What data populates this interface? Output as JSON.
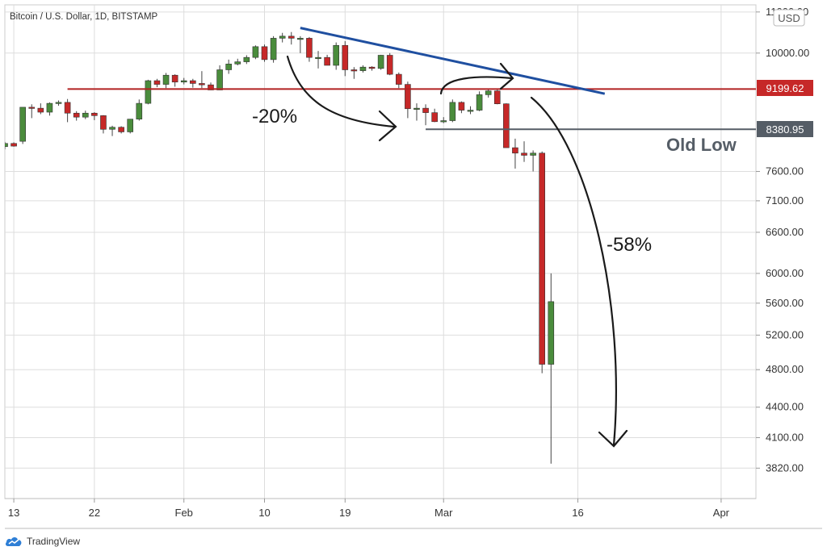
{
  "header": {
    "title": "Bitcoin / U.S. Dollar, 1D, BITSTAMP"
  },
  "currency_badge": "USD",
  "annotations": {
    "drop1": "-20%",
    "drop2": "-58%",
    "old_low": "Old Low"
  },
  "price_labels": {
    "resistance": "9199.62",
    "old_low": "8380.95"
  },
  "footer": {
    "brand": "TradingView",
    "logo_icon": "tradingview-cloud-icon"
  },
  "colors": {
    "up": "#4a8c3c",
    "down": "#c62828",
    "resistance": "#b22222",
    "support": "#555d66",
    "trendline": "#1f4fa0",
    "grid": "#dddddd"
  },
  "chart_data": {
    "type": "candlestick",
    "title": "Bitcoin / U.S. Dollar, 1D, BITSTAMP",
    "y_unit": "USD",
    "y_scale": "log",
    "ylim": [
      3600,
      11100
    ],
    "xlim": [
      "2020-01-12",
      "2020-04-02"
    ],
    "y_ticks": [
      3820,
      4100,
      4400,
      4800,
      5200,
      5600,
      6000,
      6600,
      7100,
      7600,
      10000,
      11000
    ],
    "y_tick_labels": [
      "3820.00",
      "4100.00",
      "4400.00",
      "4800.00",
      "5200.00",
      "5600.00",
      "6000.00",
      "6600.00",
      "7100.00",
      "7600.00",
      "10000.00",
      "11000.00"
    ],
    "x_ticks": [
      {
        "date": "2020-01-13",
        "label": "13"
      },
      {
        "date": "2020-01-22",
        "label": "22"
      },
      {
        "date": "2020-02-01",
        "label": "Feb"
      },
      {
        "date": "2020-02-10",
        "label": "10"
      },
      {
        "date": "2020-02-19",
        "label": "19"
      },
      {
        "date": "2020-03-01",
        "label": "Mar"
      },
      {
        "date": "2020-03-16",
        "label": "16"
      },
      {
        "date": "2020-04-01",
        "label": "Apr"
      }
    ],
    "candles": [
      [
        "2020-01-12",
        8050,
        8140,
        8000,
        8110
      ],
      [
        "2020-01-13",
        8110,
        8130,
        8050,
        8060
      ],
      [
        "2020-01-14",
        8150,
        8800,
        8100,
        8820
      ],
      [
        "2020-01-15",
        8820,
        8880,
        8600,
        8800
      ],
      [
        "2020-01-16",
        8800,
        8900,
        8680,
        8720
      ],
      [
        "2020-01-17",
        8720,
        8920,
        8650,
        8900
      ],
      [
        "2020-01-18",
        8900,
        8960,
        8850,
        8920
      ],
      [
        "2020-01-19",
        8920,
        8990,
        8520,
        8700
      ],
      [
        "2020-01-20",
        8700,
        8740,
        8550,
        8620
      ],
      [
        "2020-01-21",
        8620,
        8750,
        8580,
        8700
      ],
      [
        "2020-01-22",
        8700,
        8720,
        8560,
        8650
      ],
      [
        "2020-01-23",
        8650,
        8660,
        8300,
        8380
      ],
      [
        "2020-01-24",
        8380,
        8450,
        8250,
        8420
      ],
      [
        "2020-01-25",
        8420,
        8440,
        8300,
        8330
      ],
      [
        "2020-01-26",
        8330,
        8580,
        8300,
        8580
      ],
      [
        "2020-01-27",
        8580,
        8980,
        8550,
        8900
      ],
      [
        "2020-01-28",
        8900,
        9400,
        8880,
        9380
      ],
      [
        "2020-01-29",
        9380,
        9420,
        9240,
        9300
      ],
      [
        "2020-01-30",
        9300,
        9550,
        9220,
        9500
      ],
      [
        "2020-01-31",
        9500,
        9520,
        9250,
        9350
      ],
      [
        "2020-02-01",
        9350,
        9440,
        9300,
        9380
      ],
      [
        "2020-02-02",
        9380,
        9420,
        9230,
        9320
      ],
      [
        "2020-02-03",
        9320,
        9590,
        9220,
        9290
      ],
      [
        "2020-02-04",
        9290,
        9340,
        9180,
        9180
      ],
      [
        "2020-02-05",
        9180,
        9720,
        9180,
        9620
      ],
      [
        "2020-02-06",
        9620,
        9850,
        9530,
        9750
      ],
      [
        "2020-02-07",
        9750,
        9870,
        9720,
        9800
      ],
      [
        "2020-02-08",
        9800,
        9950,
        9750,
        9900
      ],
      [
        "2020-02-09",
        9900,
        10180,
        9860,
        10150
      ],
      [
        "2020-02-10",
        10150,
        10200,
        9800,
        9850
      ],
      [
        "2020-02-11",
        9850,
        10400,
        9780,
        10350
      ],
      [
        "2020-02-12",
        10350,
        10480,
        10250,
        10400
      ],
      [
        "2020-02-13",
        10400,
        10500,
        10200,
        10350
      ],
      [
        "2020-02-14",
        10350,
        10400,
        10000,
        10350
      ],
      [
        "2020-02-15",
        10350,
        10380,
        9800,
        9900
      ],
      [
        "2020-02-16",
        9900,
        10050,
        9650,
        9900
      ],
      [
        "2020-02-17",
        9900,
        9960,
        9720,
        9720
      ],
      [
        "2020-02-18",
        9720,
        10250,
        9620,
        10180
      ],
      [
        "2020-02-19",
        10180,
        10280,
        9480,
        9620
      ],
      [
        "2020-02-20",
        9620,
        9680,
        9420,
        9600
      ],
      [
        "2020-02-21",
        9600,
        9720,
        9560,
        9680
      ],
      [
        "2020-02-22",
        9680,
        9700,
        9600,
        9650
      ],
      [
        "2020-02-23",
        9650,
        9960,
        9620,
        9950
      ],
      [
        "2020-02-24",
        9950,
        10000,
        9500,
        9520
      ],
      [
        "2020-02-25",
        9520,
        9560,
        9220,
        9300
      ],
      [
        "2020-02-26",
        9300,
        9360,
        8600,
        8790
      ],
      [
        "2020-02-27",
        8790,
        8900,
        8550,
        8800
      ],
      [
        "2020-02-28",
        8800,
        8880,
        8460,
        8710
      ],
      [
        "2020-02-29",
        8710,
        8790,
        8520,
        8530
      ],
      [
        "2020-03-01",
        8530,
        8620,
        8500,
        8550
      ],
      [
        "2020-03-02",
        8550,
        8980,
        8520,
        8920
      ],
      [
        "2020-03-03",
        8920,
        8940,
        8700,
        8760
      ],
      [
        "2020-03-04",
        8760,
        8840,
        8680,
        8760
      ],
      [
        "2020-03-05",
        8760,
        9150,
        8740,
        9080
      ],
      [
        "2020-03-06",
        9080,
        9200,
        9020,
        9160
      ],
      [
        "2020-03-07",
        9160,
        9200,
        8880,
        8890
      ],
      [
        "2020-03-08",
        8890,
        8900,
        8060,
        8030
      ],
      [
        "2020-03-09",
        8030,
        8200,
        7650,
        7930
      ],
      [
        "2020-03-10",
        7930,
        8150,
        7770,
        7890
      ],
      [
        "2020-03-11",
        7890,
        7980,
        7600,
        7930
      ],
      [
        "2020-03-12",
        7930,
        7960,
        4760,
        4860
      ],
      [
        "2020-03-13",
        4860,
        6000,
        3860,
        5620
      ]
    ],
    "overlays": [
      {
        "name": "9199.62",
        "kind": "horizontal",
        "value": 9199.62,
        "from": "2020-01-19",
        "to": "2020-04-01"
      },
      {
        "name": "8380.95",
        "kind": "horizontal",
        "value": 8380.95,
        "from": "2020-02-28",
        "to": "2020-04-01"
      },
      {
        "name": "trendline",
        "kind": "segment",
        "from": [
          "2020-02-14",
          10600
        ],
        "to": [
          "2020-03-19",
          9100
        ]
      }
    ],
    "grid": true,
    "legend": "none"
  }
}
